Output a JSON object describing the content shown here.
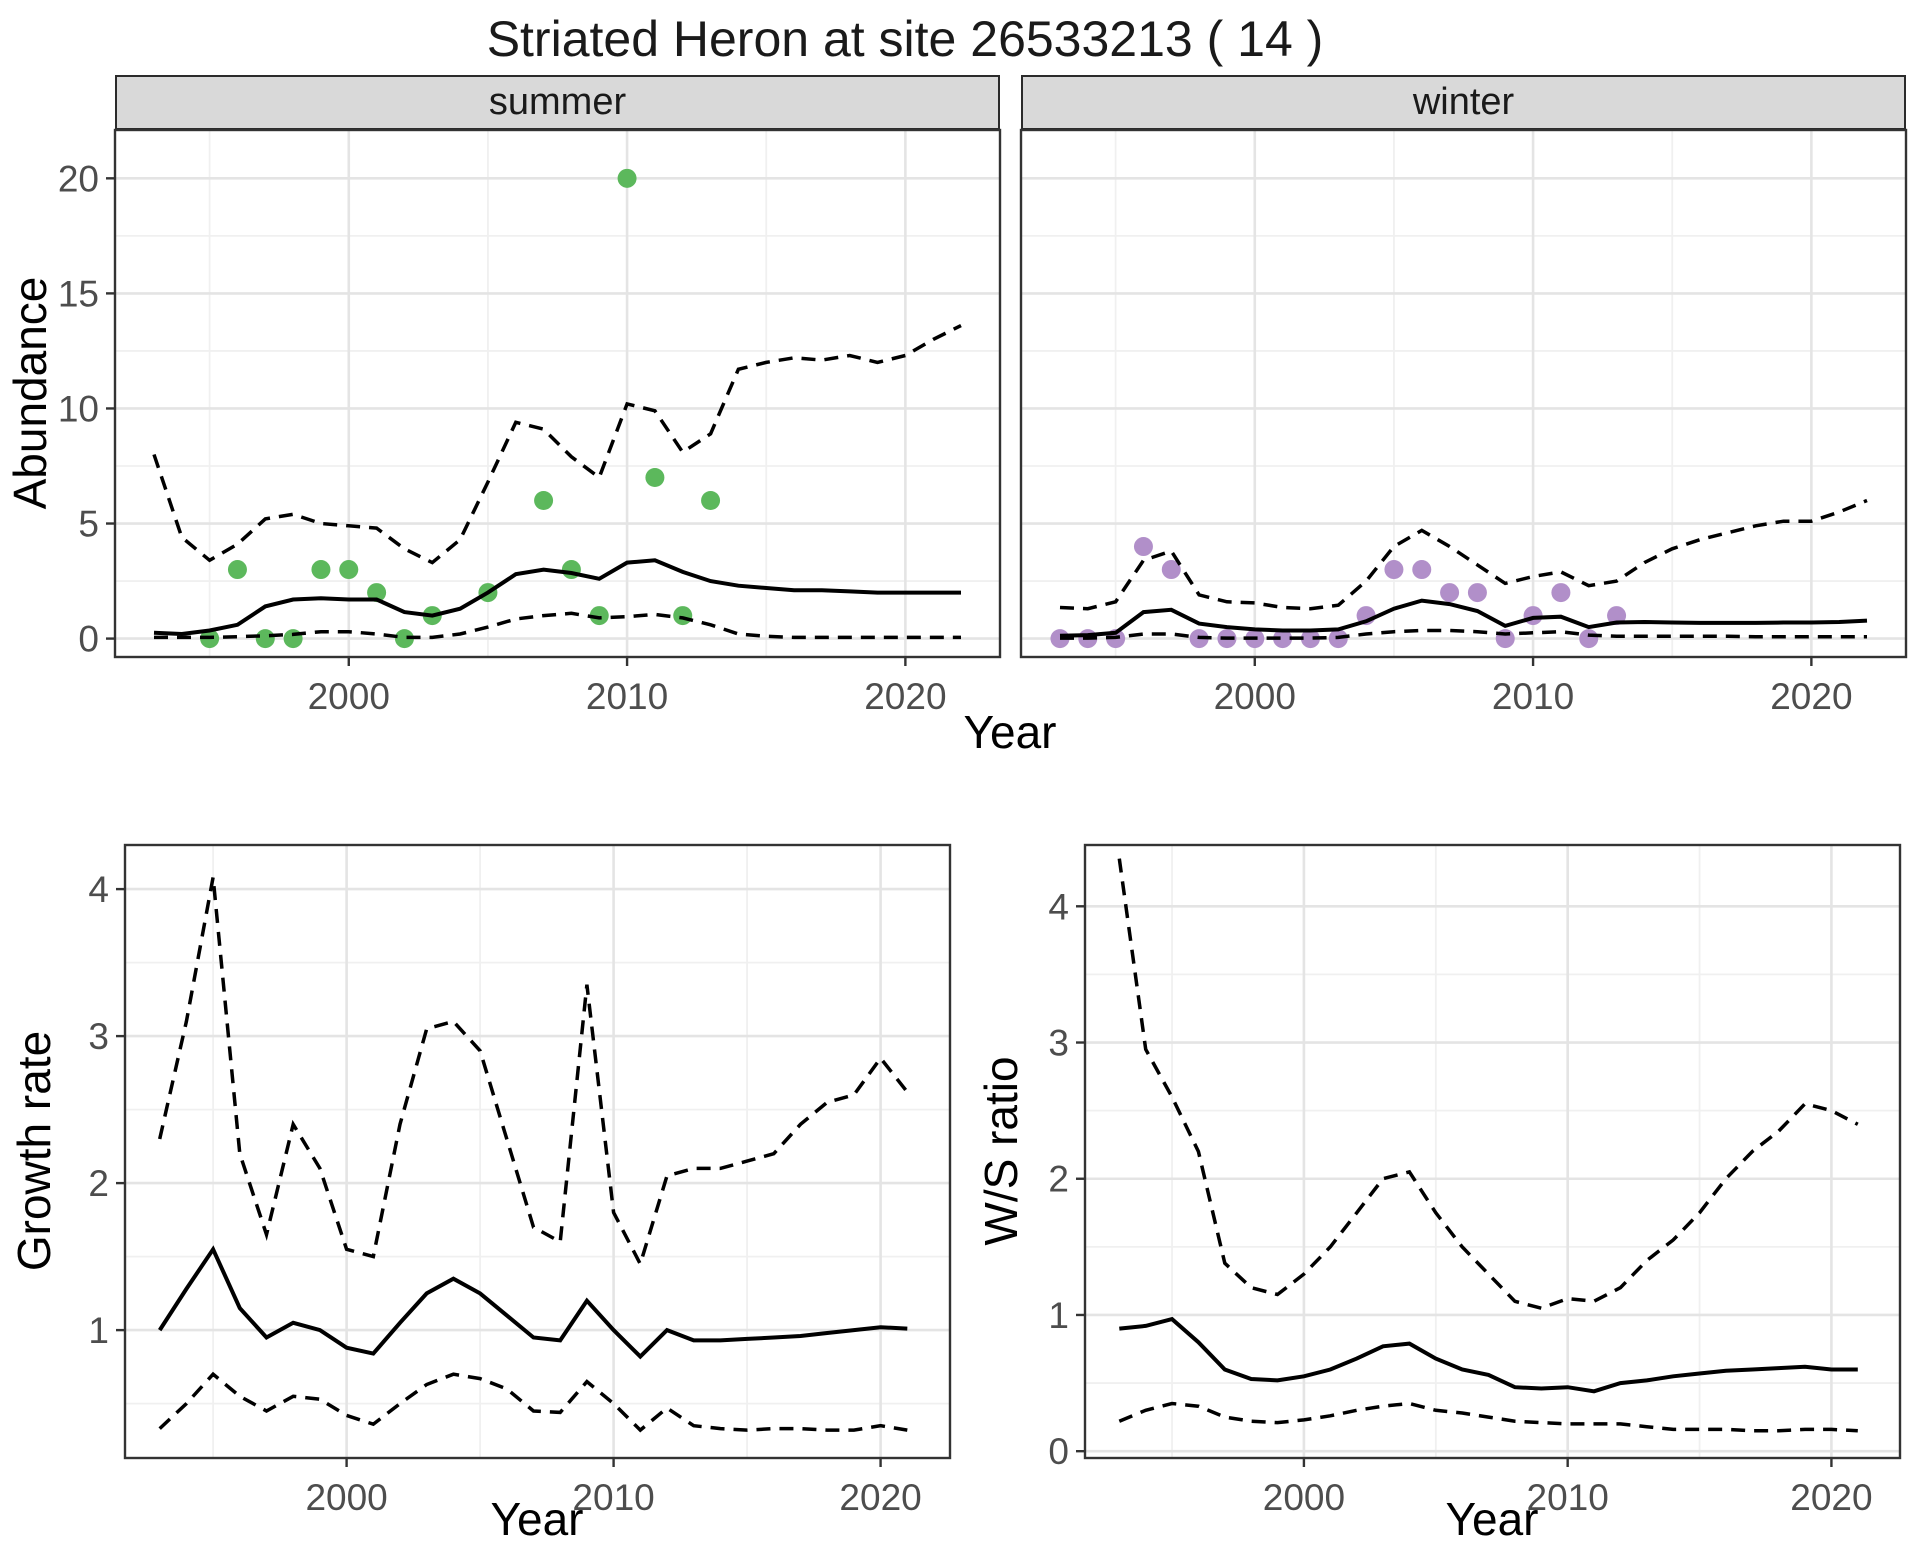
{
  "title": "Striated Heron at site 26533213 ( 14 )",
  "colors": {
    "summer_point": "#5cb85c",
    "winter_point": "#b18fc9",
    "line": "#000000",
    "strip_bg": "#d9d9d9",
    "panel_border": "#333333",
    "grid_major": "#e4e4e4",
    "grid_minor": "#f0f0f0",
    "tick_label": "#4d4d4d"
  },
  "chart_data": [
    {
      "id": "abundance-summer",
      "type": "line",
      "facet": "summer",
      "ylabel": "Abundance",
      "xlabel": "Year",
      "xlim": [
        1991.6,
        2023.4
      ],
      "ylim": [
        -0.8,
        22.1
      ],
      "xticks": [
        2000,
        2010,
        2020
      ],
      "xminor": [
        1995,
        2005,
        2015
      ],
      "yticks": [
        0,
        5,
        10,
        15,
        20
      ],
      "yminor": [
        2.5,
        7.5,
        12.5,
        17.5
      ],
      "grid": "on",
      "legend": "none",
      "years": [
        1993,
        1994,
        1995,
        1996,
        1997,
        1998,
        1999,
        2000,
        2001,
        2002,
        2003,
        2004,
        2005,
        2006,
        2007,
        2008,
        2009,
        2010,
        2011,
        2012,
        2013,
        2014,
        2015,
        2016,
        2017,
        2018,
        2019,
        2020,
        2021,
        2022
      ],
      "series": [
        {
          "name": "median",
          "style": "solid",
          "values": [
            0.25,
            0.2,
            0.35,
            0.6,
            1.4,
            1.7,
            1.75,
            1.7,
            1.7,
            1.15,
            1.0,
            1.3,
            2.0,
            2.8,
            3.0,
            2.85,
            2.6,
            3.3,
            3.4,
            2.9,
            2.5,
            2.3,
            2.2,
            2.1,
            2.1,
            2.05,
            2.0,
            2.0,
            2.0,
            2.0
          ]
        },
        {
          "name": "upper_ci",
          "style": "dashed",
          "values": [
            8.0,
            4.4,
            3.4,
            4.1,
            5.2,
            5.4,
            5.0,
            4.9,
            4.8,
            3.9,
            3.3,
            4.3,
            6.8,
            9.4,
            9.1,
            7.9,
            7.0,
            10.2,
            9.9,
            8.1,
            8.9,
            11.7,
            12.0,
            12.2,
            12.1,
            12.3,
            12.0,
            12.3,
            13.0,
            13.6
          ]
        },
        {
          "name": "lower_ci",
          "style": "dashed",
          "values": [
            0.05,
            0.05,
            0.05,
            0.08,
            0.12,
            0.18,
            0.3,
            0.3,
            0.2,
            0.05,
            0.05,
            0.2,
            0.5,
            0.85,
            1.0,
            1.1,
            0.9,
            0.95,
            1.05,
            0.9,
            0.6,
            0.2,
            0.1,
            0.05,
            0.05,
            0.05,
            0.05,
            0.05,
            0.05,
            0.05
          ]
        }
      ],
      "points": {
        "name": "observed_counts",
        "color": "#5cb85c",
        "data": [
          [
            1995,
            0
          ],
          [
            1996,
            3
          ],
          [
            1997,
            0
          ],
          [
            1998,
            0
          ],
          [
            1999,
            3
          ],
          [
            2000,
            3
          ],
          [
            2001,
            2
          ],
          [
            2002,
            0
          ],
          [
            2003,
            1
          ],
          [
            2005,
            2
          ],
          [
            2007,
            6
          ],
          [
            2008,
            3
          ],
          [
            2009,
            1
          ],
          [
            2010,
            20
          ],
          [
            2011,
            7
          ],
          [
            2012,
            1
          ],
          [
            2013,
            6
          ]
        ]
      }
    },
    {
      "id": "abundance-winter",
      "type": "line",
      "facet": "winter",
      "ylabel": "Abundance",
      "xlabel": "Year",
      "xlim": [
        1991.6,
        2023.4
      ],
      "ylim": [
        -0.8,
        22.1
      ],
      "xticks": [
        2000,
        2010,
        2020
      ],
      "xminor": [
        1995,
        2005,
        2015
      ],
      "yticks": [
        0,
        5,
        10,
        15,
        20
      ],
      "yminor": [
        2.5,
        7.5,
        12.5,
        17.5
      ],
      "grid": "on",
      "legend": "none",
      "years": [
        1993,
        1994,
        1995,
        1996,
        1997,
        1998,
        1999,
        2000,
        2001,
        2002,
        2003,
        2004,
        2005,
        2006,
        2007,
        2008,
        2009,
        2010,
        2011,
        2012,
        2013,
        2014,
        2015,
        2016,
        2017,
        2018,
        2019,
        2020,
        2021,
        2022
      ],
      "series": [
        {
          "name": "median",
          "style": "solid",
          "values": [
            0.12,
            0.15,
            0.25,
            1.15,
            1.25,
            0.65,
            0.5,
            0.4,
            0.35,
            0.35,
            0.4,
            0.75,
            1.3,
            1.65,
            1.5,
            1.2,
            0.55,
            0.9,
            0.95,
            0.5,
            0.7,
            0.72,
            0.7,
            0.68,
            0.68,
            0.68,
            0.7,
            0.7,
            0.72,
            0.78
          ]
        },
        {
          "name": "upper_ci",
          "style": "dashed",
          "values": [
            1.35,
            1.3,
            1.6,
            3.4,
            3.8,
            1.9,
            1.6,
            1.55,
            1.35,
            1.3,
            1.45,
            2.5,
            4.0,
            4.7,
            4.0,
            3.2,
            2.4,
            2.7,
            2.9,
            2.3,
            2.5,
            3.3,
            3.9,
            4.3,
            4.6,
            4.9,
            5.1,
            5.1,
            5.5,
            6.0
          ]
        },
        {
          "name": "lower_ci",
          "style": "dashed",
          "values": [
            0.02,
            0.02,
            0.05,
            0.2,
            0.2,
            0.05,
            0.02,
            0.02,
            0.02,
            0.02,
            0.05,
            0.2,
            0.3,
            0.35,
            0.35,
            0.3,
            0.2,
            0.25,
            0.3,
            0.15,
            0.1,
            0.1,
            0.1,
            0.1,
            0.1,
            0.08,
            0.08,
            0.08,
            0.08,
            0.08
          ]
        }
      ],
      "points": {
        "name": "observed_counts",
        "color": "#b18fc9",
        "data": [
          [
            1993,
            0
          ],
          [
            1994,
            0
          ],
          [
            1995,
            0
          ],
          [
            1996,
            4
          ],
          [
            1997,
            3
          ],
          [
            1998,
            0
          ],
          [
            1999,
            0
          ],
          [
            2000,
            0
          ],
          [
            2001,
            0
          ],
          [
            2002,
            0
          ],
          [
            2003,
            0
          ],
          [
            2004,
            1
          ],
          [
            2005,
            3
          ],
          [
            2006,
            3
          ],
          [
            2007,
            2
          ],
          [
            2008,
            2
          ],
          [
            2009,
            0
          ],
          [
            2010,
            1
          ],
          [
            2011,
            2
          ],
          [
            2012,
            0
          ],
          [
            2013,
            1
          ]
        ]
      }
    },
    {
      "id": "growth-rate",
      "type": "line",
      "facet": "",
      "ylabel": "Growth rate",
      "xlabel": "Year",
      "xlim": [
        1991.7,
        2022.6
      ],
      "ylim": [
        0.13,
        4.3
      ],
      "xticks": [
        2000,
        2010,
        2020
      ],
      "xminor": [
        1995,
        2005,
        2015
      ],
      "yticks": [
        1,
        2,
        3,
        4
      ],
      "yminor": [
        0.5,
        1.5,
        2.5,
        3.5
      ],
      "grid": "on",
      "legend": "none",
      "years": [
        1993,
        1994,
        1995,
        1996,
        1997,
        1998,
        1999,
        2000,
        2001,
        2002,
        2003,
        2004,
        2005,
        2006,
        2007,
        2008,
        2009,
        2010,
        2011,
        2012,
        2013,
        2014,
        2015,
        2016,
        2017,
        2018,
        2019,
        2020,
        2021
      ],
      "series": [
        {
          "name": "median",
          "style": "solid",
          "values": [
            1.0,
            1.28,
            1.55,
            1.15,
            0.95,
            1.05,
            1.0,
            0.88,
            0.84,
            1.05,
            1.25,
            1.35,
            1.25,
            1.1,
            0.95,
            0.93,
            1.2,
            1.0,
            0.82,
            1.0,
            0.93,
            0.93,
            0.94,
            0.95,
            0.96,
            0.98,
            1.0,
            1.02,
            1.01
          ]
        },
        {
          "name": "upper_ci",
          "style": "dashed",
          "values": [
            2.3,
            3.1,
            4.08,
            2.2,
            1.65,
            2.4,
            2.1,
            1.55,
            1.5,
            2.4,
            3.05,
            3.1,
            2.9,
            2.3,
            1.7,
            1.6,
            3.35,
            1.8,
            1.45,
            2.05,
            2.1,
            2.1,
            2.15,
            2.2,
            2.4,
            2.55,
            2.6,
            2.85,
            2.62
          ]
        },
        {
          "name": "lower_ci",
          "style": "dashed",
          "values": [
            0.33,
            0.5,
            0.7,
            0.55,
            0.45,
            0.55,
            0.53,
            0.42,
            0.36,
            0.5,
            0.63,
            0.7,
            0.67,
            0.6,
            0.45,
            0.44,
            0.65,
            0.5,
            0.32,
            0.47,
            0.35,
            0.33,
            0.32,
            0.33,
            0.33,
            0.32,
            0.32,
            0.35,
            0.32
          ]
        }
      ],
      "points": {
        "name": "none",
        "color": "none",
        "data": []
      }
    },
    {
      "id": "ws-ratio",
      "type": "line",
      "facet": "",
      "ylabel": "W/S ratio",
      "xlabel": "Year",
      "xlim": [
        1991.7,
        2022.6
      ],
      "ylim": [
        -0.05,
        4.45
      ],
      "xticks": [
        2000,
        2010,
        2020
      ],
      "xminor": [
        1995,
        2005,
        2015
      ],
      "yticks": [
        0,
        1,
        2,
        3,
        4
      ],
      "yminor": [
        0.5,
        1.5,
        2.5,
        3.5
      ],
      "grid": "on",
      "legend": "none",
      "years": [
        1993,
        1994,
        1995,
        1996,
        1997,
        1998,
        1999,
        2000,
        2001,
        2002,
        2003,
        2004,
        2005,
        2006,
        2007,
        2008,
        2009,
        2010,
        2011,
        2012,
        2013,
        2014,
        2015,
        2016,
        2017,
        2018,
        2019,
        2020,
        2021
      ],
      "series": [
        {
          "name": "median",
          "style": "solid",
          "values": [
            0.9,
            0.92,
            0.97,
            0.8,
            0.6,
            0.53,
            0.52,
            0.55,
            0.6,
            0.68,
            0.77,
            0.79,
            0.68,
            0.6,
            0.56,
            0.47,
            0.46,
            0.47,
            0.44,
            0.5,
            0.52,
            0.55,
            0.57,
            0.59,
            0.6,
            0.61,
            0.62,
            0.6,
            0.6
          ]
        },
        {
          "name": "upper_ci",
          "style": "dashed",
          "values": [
            4.35,
            2.95,
            2.6,
            2.2,
            1.38,
            1.2,
            1.15,
            1.3,
            1.5,
            1.75,
            2.0,
            2.05,
            1.75,
            1.5,
            1.3,
            1.1,
            1.05,
            1.12,
            1.1,
            1.2,
            1.4,
            1.55,
            1.75,
            2.0,
            2.2,
            2.35,
            2.55,
            2.5,
            2.4
          ]
        },
        {
          "name": "lower_ci",
          "style": "dashed",
          "values": [
            0.22,
            0.3,
            0.35,
            0.33,
            0.25,
            0.22,
            0.21,
            0.23,
            0.26,
            0.3,
            0.33,
            0.35,
            0.3,
            0.28,
            0.25,
            0.22,
            0.21,
            0.2,
            0.2,
            0.2,
            0.18,
            0.16,
            0.16,
            0.16,
            0.15,
            0.15,
            0.16,
            0.16,
            0.15
          ]
        }
      ],
      "points": {
        "name": "none",
        "color": "none",
        "data": []
      }
    }
  ]
}
